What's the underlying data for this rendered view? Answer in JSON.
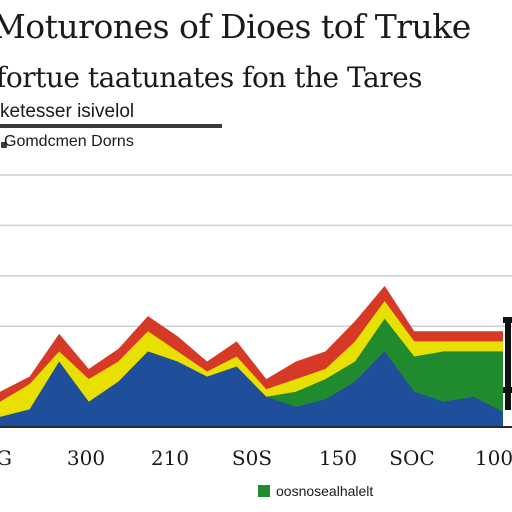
{
  "chart_data": {
    "type": "area",
    "title": "Moturones of Dioes tof Truke",
    "subtitle": "fortue taatunates fon the Tares",
    "labels": [
      "ketesser isivelol",
      "Gomdcmen Dorns"
    ],
    "x_tick_labels": [
      "G",
      "300",
      "210",
      "S0S",
      "150",
      "SOC",
      "100"
    ],
    "legend": {
      "label": "oosnosealhalelt",
      "color": "#1f8a2e",
      "position": "bottom"
    },
    "grid": true,
    "ylim": [
      0,
      100
    ],
    "x": [
      0,
      1,
      2,
      3,
      4,
      5,
      6,
      7,
      8,
      9,
      10,
      11,
      12,
      13,
      14,
      15,
      16,
      17
    ],
    "series": [
      {
        "color": "#1f4e9a",
        "values": [
          4,
          7,
          26,
          10,
          18,
          30,
          26,
          20,
          24,
          12,
          8,
          11,
          18,
          30,
          14,
          10,
          12,
          6
        ]
      },
      {
        "color": "#1f8a2e",
        "values": [
          null,
          null,
          null,
          null,
          null,
          null,
          null,
          null,
          null,
          12,
          14,
          19,
          26,
          43,
          28,
          30,
          30,
          30
        ]
      },
      {
        "color": "#e8e000",
        "values": [
          10,
          17,
          30,
          19,
          26,
          38,
          30,
          22,
          28,
          15,
          19,
          23,
          34,
          50,
          34,
          34,
          34,
          34
        ]
      },
      {
        "color": "#d63a26",
        "values": [
          14,
          20,
          37,
          23,
          31,
          44,
          36,
          26,
          34,
          19,
          26,
          30,
          42,
          56,
          38,
          38,
          38,
          38
        ]
      }
    ],
    "colors": {
      "gridline": "#cfcfcf",
      "baseline": "#2a2a2a",
      "right_marker": "#111111"
    }
  }
}
